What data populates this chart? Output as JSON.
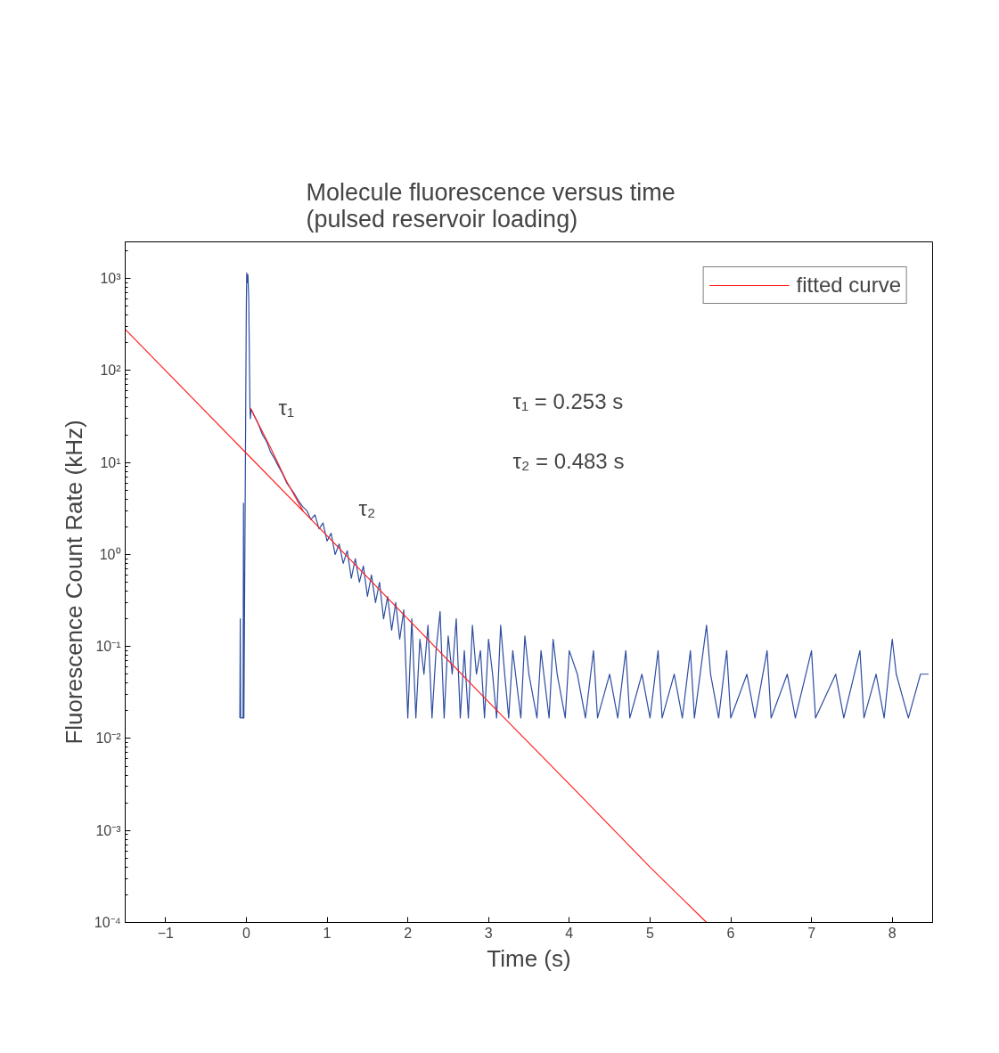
{
  "chart_data": {
    "type": "line",
    "title": "Molecule fluorescence versus time\n(pulsed reservoir loading)",
    "xlabel": "Time (s)",
    "ylabel": "Fluorescence Count Rate (kHz)",
    "log": "y",
    "grid": false,
    "legend": "top right",
    "marker": "none",
    "line_style": "solid",
    "xlim": [
      -1.5,
      8.5
    ],
    "xticks": [
      {
        "value": -1,
        "label": "−1"
      },
      0,
      1,
      2,
      3,
      4,
      5,
      6,
      7,
      8
    ],
    "ylim": [
      0.0001,
      2500
    ],
    "yticks": [
      {
        "value": 0.0001,
        "label": "10⁻⁴"
      },
      {
        "value": 0.001,
        "label": "10⁻³"
      },
      {
        "value": 0.01,
        "label": "10⁻²"
      },
      {
        "value": 0.1,
        "label": "10⁻¹"
      },
      {
        "value": 1,
        "label": "10⁰"
      },
      {
        "value": 10,
        "label": "10¹"
      },
      {
        "value": 100,
        "label": "10²"
      },
      {
        "value": 1000,
        "label": "10³"
      }
    ],
    "series": [
      {
        "color": "#2e4da0",
        "x": [
          -0.08,
          -0.075,
          -0.07,
          -0.04,
          -0.035,
          -0.03,
          0.0,
          0.005,
          0.015,
          0.02,
          0.03,
          0.045,
          0.05,
          0.06,
          0.1,
          0.15,
          0.2,
          0.25,
          0.3,
          0.35,
          0.4,
          0.45,
          0.5,
          0.55,
          0.6,
          0.65,
          0.7,
          0.75,
          0.8,
          0.85,
          0.9,
          0.95,
          1.0,
          1.05,
          1.1,
          1.15,
          1.2,
          1.25,
          1.3,
          1.35,
          1.4,
          1.45,
          1.5,
          1.55,
          1.6,
          1.65,
          1.7,
          1.75,
          1.8,
          1.85,
          1.9,
          1.95,
          2.0,
          2.05,
          2.1,
          2.15,
          2.2,
          2.25,
          2.3,
          2.35,
          2.4,
          2.45,
          2.5,
          2.55,
          2.6,
          2.65,
          2.7,
          2.75,
          2.8,
          2.85,
          2.9,
          2.95,
          3.0,
          3.05,
          3.1,
          3.15,
          3.2,
          3.25,
          3.3,
          3.4,
          3.45,
          3.5,
          3.6,
          3.65,
          3.75,
          3.8,
          3.85,
          3.95,
          4.0,
          4.1,
          4.2,
          4.3,
          4.35,
          4.5,
          4.6,
          4.7,
          4.75,
          4.9,
          5.0,
          5.1,
          5.15,
          5.3,
          5.4,
          5.5,
          5.55,
          5.7,
          5.75,
          5.85,
          5.95,
          6.0,
          6.2,
          6.3,
          6.45,
          6.5,
          6.7,
          6.8,
          7.0,
          7.05,
          7.3,
          7.4,
          7.6,
          7.65,
          7.8,
          7.9,
          8.0,
          8.05,
          8.2,
          8.35,
          8.45
        ],
        "values": [
          0.0167,
          0.2,
          0.0167,
          0.0167,
          3.6,
          0.0167,
          500,
          1150,
          900,
          1100,
          600,
          40,
          30,
          38,
          32,
          26,
          20,
          17,
          13,
          11,
          9,
          7.5,
          6,
          5.2,
          4.5,
          3.8,
          3.3,
          3.0,
          2.4,
          2.7,
          1.9,
          2.2,
          1.4,
          1.7,
          1.0,
          1.3,
          0.8,
          1.1,
          0.55,
          0.9,
          0.5,
          0.75,
          0.35,
          0.6,
          0.3,
          0.5,
          0.2,
          0.35,
          0.15,
          0.3,
          0.12,
          0.25,
          0.0167,
          0.2,
          0.0167,
          0.12,
          0.05,
          0.17,
          0.0167,
          0.09,
          0.24,
          0.0167,
          0.13,
          0.05,
          0.2,
          0.0167,
          0.09,
          0.0167,
          0.17,
          0.05,
          0.09,
          0.0167,
          0.12,
          0.05,
          0.0167,
          0.17,
          0.05,
          0.0167,
          0.09,
          0.0167,
          0.13,
          0.05,
          0.0167,
          0.09,
          0.0167,
          0.12,
          0.05,
          0.0167,
          0.09,
          0.05,
          0.0167,
          0.09,
          0.0167,
          0.05,
          0.0167,
          0.09,
          0.0167,
          0.05,
          0.0167,
          0.09,
          0.0167,
          0.05,
          0.0167,
          0.09,
          0.0167,
          0.17,
          0.05,
          0.0167,
          0.09,
          0.0167,
          0.05,
          0.0167,
          0.09,
          0.0167,
          0.05,
          0.0167,
          0.09,
          0.0167,
          0.05,
          0.0167,
          0.09,
          0.0167,
          0.05,
          0.0167,
          0.12,
          0.05,
          0.0167,
          0.05,
          0.05
        ]
      },
      {
        "name": "fitted curve",
        "color": "#ff2020",
        "x": [
          0.05,
          0.3,
          0.5,
          0.71,
          null,
          -1.5,
          0,
          1,
          2,
          3,
          4,
          5,
          5.7
        ],
        "values": [
          39,
          14.5,
          6.2,
          2.9,
          null,
          280,
          12.6,
          1.6,
          0.2,
          0.025,
          0.0032,
          0.0004,
          0.0001
        ]
      }
    ],
    "annotations": [
      "τ₁",
      "τ₂",
      "τ₁ = 0.253 s",
      "τ₂ = 0.483 s"
    ]
  }
}
